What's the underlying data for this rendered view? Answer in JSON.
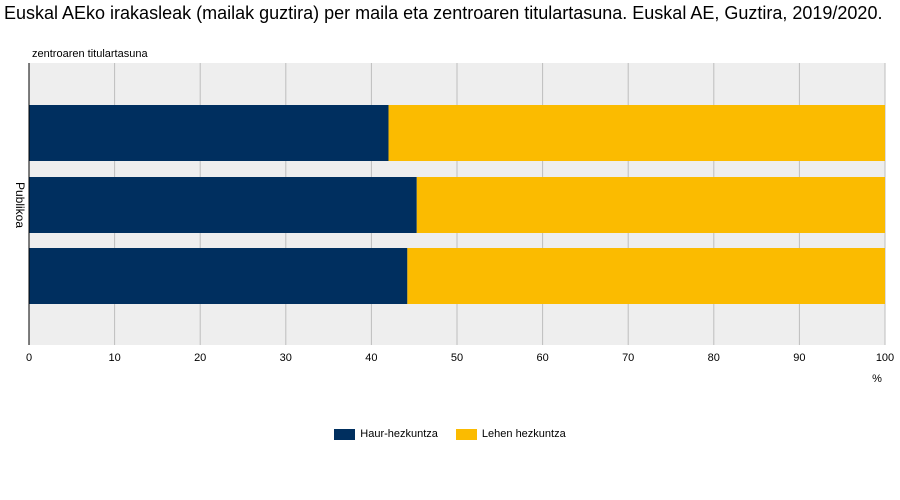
{
  "chart_data": {
    "type": "bar",
    "orientation": "horizontal",
    "stacked": true,
    "title": "Euskal AEko irakasleak (mailak guztira) per maila eta zentroaren titulartasuna. Euskal AE, Guztira, 2019/2020.",
    "y_axis_title": "zentroaren titulartasuna",
    "y_category_label": "Publikoa",
    "x_unit_label": "%",
    "xlim": [
      0,
      100
    ],
    "x_ticks": [
      "0",
      "10",
      "20",
      "30",
      "40",
      "50",
      "60",
      "70",
      "80",
      "90",
      "100"
    ],
    "grid": true,
    "legend_position": "bottom",
    "bars": 3,
    "series": [
      {
        "name": "Haur-hezkuntza",
        "color": "#002f5f",
        "values": [
          42.0,
          45.3,
          44.2
        ]
      },
      {
        "name": "Lehen hezkuntza",
        "color": "#fbbb00",
        "values": [
          58.0,
          54.7,
          55.8
        ]
      }
    ],
    "plot_background": "#eeeeee",
    "grid_color": "#bdbdbd"
  }
}
